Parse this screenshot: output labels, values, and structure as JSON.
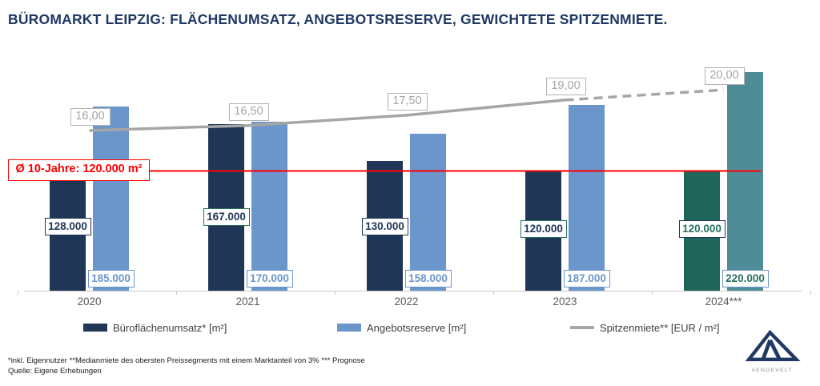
{
  "title": "BÜROMARKT LEIPZIG: FLÄCHENUMSATZ, ANGEBOTSRESERVE, GEWICHTETE SPITZENMIETE.",
  "chart_data": {
    "type": "bar",
    "categories": [
      "2020",
      "2021",
      "2022",
      "2023",
      "2024***"
    ],
    "series": [
      {
        "name": "Büroflächenumsatz* [m²]",
        "type": "bar",
        "values": [
          128000,
          167000,
          130000,
          120000,
          120000
        ],
        "value_labels": [
          "128.000",
          "167.000",
          "130.000",
          "120.000",
          "120.000"
        ]
      },
      {
        "name": "Angebotsreserve [m²]",
        "type": "bar",
        "values": [
          185000,
          170000,
          158000,
          187000,
          220000
        ],
        "value_labels": [
          "185.000",
          "170.000",
          "158.000",
          "187.000",
          "220.000"
        ]
      },
      {
        "name": "Spitzenmiete** [EUR / m²]",
        "type": "line",
        "values": [
          16.0,
          16.5,
          17.5,
          19.0,
          20.0
        ],
        "value_labels": [
          "16,00",
          "16,50",
          "17,50",
          "19,00",
          "20,00"
        ],
        "dashed_from_index": 3
      }
    ],
    "average_line": {
      "value": 120000,
      "label": "Ø 10-Jahre: 120.000 m²"
    },
    "ylim_bars": [
      0,
      290000
    ],
    "last_category_is_forecast": true,
    "grid": false,
    "legend_position": "bottom"
  },
  "label_styles": {
    "dark_bar_labels": [
      {
        "border": "navy",
        "text": "navy"
      },
      {
        "border": "teal",
        "text": "navy"
      },
      {
        "border": "navy",
        "text": "navy"
      },
      {
        "border": "teal",
        "text": "navy"
      },
      {
        "border": "navy",
        "text": "teal"
      }
    ],
    "light_bar_labels": [
      {
        "border": "light_blue",
        "text": "light_blue"
      },
      {
        "border": "light_blue",
        "text": "light_blue"
      },
      {
        "border": "light_blue",
        "text": "light_blue"
      },
      {
        "border": "light_blue",
        "text": "light_blue"
      },
      {
        "border": "light_blue",
        "text": "teal"
      }
    ]
  },
  "legend": {
    "items": [
      {
        "label": "Büroflächenumsatz* [m²]",
        "swatch": "navy-rect"
      },
      {
        "label": "Angebotsreserve [m²]",
        "swatch": "lightblue-rect"
      },
      {
        "label": "Spitzenmiete** [EUR / m²]",
        "swatch": "grey-line"
      }
    ]
  },
  "footnotes": {
    "line1": "*inkl. Eigennutzer **Medianmiete des obersten Preissegments mit einem Marktanteil von 3% *** Prognose",
    "line2": "Quelle: Eigene Erhebungen"
  },
  "logo": {
    "wordmark": "AENGEVELT"
  },
  "colors": {
    "navy": "#203657",
    "light_blue": "#6b96cb",
    "teal_dark": "#20655a",
    "teal_light": "#4e8d97",
    "label_teal": "#26705f",
    "line_grey": "#a6a6a6",
    "red": "#ff0000",
    "title_navy": "#1f3864",
    "axis_grey": "#c9c9c9",
    "year_text": "#595959"
  }
}
